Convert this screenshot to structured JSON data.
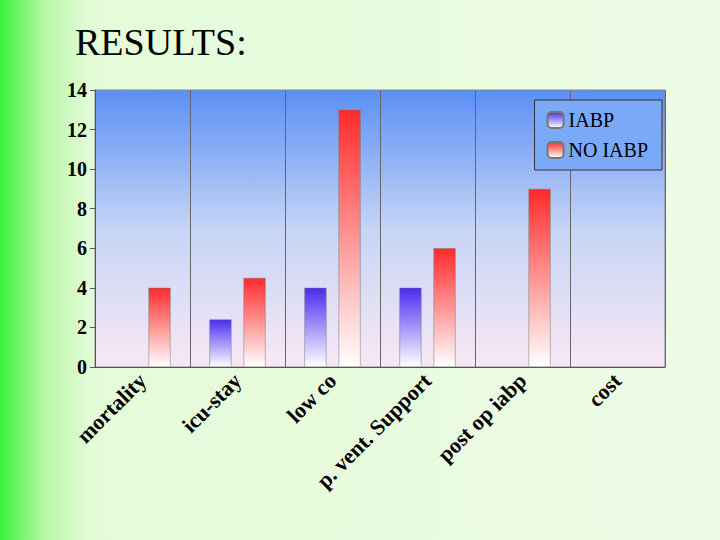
{
  "chart_data": {
    "type": "bar",
    "title": "RESULTS:",
    "categories": [
      "mortality",
      "icu-stay",
      "low co",
      "p. vent. Support",
      "post op iabp",
      "cost"
    ],
    "series": [
      {
        "name": "IABP",
        "color": "#4a2cf0",
        "values": [
          null,
          2.4,
          4,
          4,
          null,
          null
        ]
      },
      {
        "name": "NO IABP",
        "color": "#ff2a2a",
        "values": [
          4,
          4.5,
          13,
          6,
          9,
          null
        ]
      }
    ],
    "ylim": [
      0,
      14
    ],
    "yticks": [
      0,
      2,
      4,
      6,
      8,
      10,
      12,
      14
    ],
    "grid": true,
    "legend": "top-right"
  }
}
